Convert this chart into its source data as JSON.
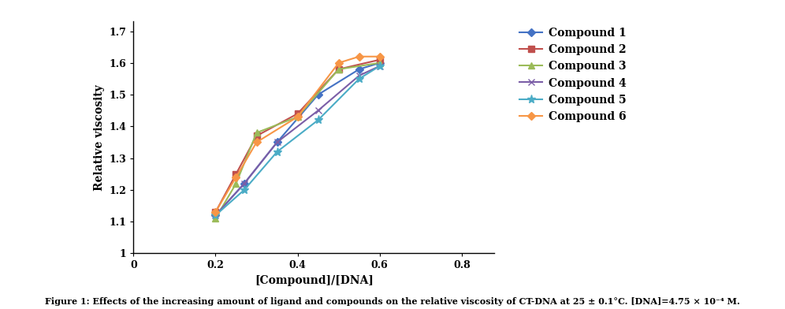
{
  "compounds": {
    "Compound 1": {
      "x": [
        0.2,
        0.27,
        0.35,
        0.45,
        0.55,
        0.6
      ],
      "y": [
        1.12,
        1.22,
        1.35,
        1.5,
        1.58,
        1.6
      ],
      "color": "#4472C4",
      "marker": "D",
      "marker_size": 5,
      "lw": 1.5
    },
    "Compound 2": {
      "x": [
        0.2,
        0.25,
        0.3,
        0.4,
        0.5,
        0.6
      ],
      "y": [
        1.13,
        1.25,
        1.37,
        1.44,
        1.58,
        1.61
      ],
      "color": "#C0504D",
      "marker": "s",
      "marker_size": 6,
      "lw": 1.5
    },
    "Compound 3": {
      "x": [
        0.2,
        0.25,
        0.3,
        0.4,
        0.5,
        0.6
      ],
      "y": [
        1.11,
        1.22,
        1.38,
        1.43,
        1.58,
        1.6
      ],
      "color": "#9BBB59",
      "marker": "^",
      "marker_size": 6,
      "lw": 1.5
    },
    "Compound 4": {
      "x": [
        0.2,
        0.27,
        0.35,
        0.45,
        0.55,
        0.6
      ],
      "y": [
        1.12,
        1.22,
        1.35,
        1.45,
        1.56,
        1.59
      ],
      "color": "#7B5EA7",
      "marker": "x",
      "marker_size": 6,
      "lw": 1.5
    },
    "Compound 5": {
      "x": [
        0.2,
        0.27,
        0.35,
        0.45,
        0.55,
        0.6
      ],
      "y": [
        1.12,
        1.2,
        1.32,
        1.42,
        1.55,
        1.59
      ],
      "color": "#4BACC6",
      "marker": "*",
      "marker_size": 8,
      "lw": 1.5
    },
    "Compound 6": {
      "x": [
        0.2,
        0.25,
        0.3,
        0.4,
        0.5,
        0.55,
        0.6
      ],
      "y": [
        1.13,
        1.24,
        1.35,
        1.43,
        1.6,
        1.62,
        1.62
      ],
      "color": "#F79646",
      "marker": "D",
      "marker_size": 5,
      "lw": 1.5
    }
  },
  "xlabel": "[Compound]/[DNA]",
  "ylabel": "Relative viscosity",
  "xlim": [
    0,
    0.88
  ],
  "ylim": [
    1.0,
    1.73
  ],
  "xticks": [
    0,
    0.2,
    0.4,
    0.6,
    0.8
  ],
  "xtick_labels": [
    "0",
    "0.2",
    "0.4",
    "0.6",
    "0.8"
  ],
  "yticks": [
    1.0,
    1.1,
    1.2,
    1.3,
    1.4,
    1.5,
    1.6,
    1.7
  ],
  "ytick_labels": [
    "1",
    "1.1",
    "1.2",
    "1.3",
    "1.4",
    "1.5",
    "1.6",
    "1.7"
  ],
  "caption": "Figure 1: Effects of the increasing amount of ligand and compounds on the relative viscosity of CT-DNA at 25 ± 0.1°C. [DNA]=4.75 × 10⁻⁴ M.",
  "figsize": [
    9.96,
    3.92
  ],
  "dpi": 100,
  "bg_color": "#ffffff"
}
